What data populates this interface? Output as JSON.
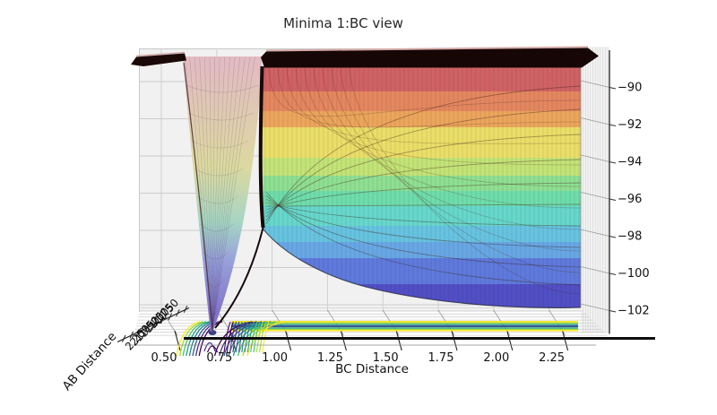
{
  "figure": {
    "title": "Minima 1:BC view",
    "background": "#ffffff"
  },
  "axes": {
    "x": {
      "label": "BC Distance",
      "ticks": [
        0.5,
        0.75,
        1.0,
        1.25,
        1.5,
        1.75,
        2.0,
        2.25
      ]
    },
    "y": {
      "label": "AB Distance",
      "ticks": [
        0.5,
        0.75,
        1.0,
        1.25,
        1.5,
        1.75,
        2.0,
        2.25
      ]
    },
    "z": {
      "ticks": [
        -90,
        -92,
        -94,
        -96,
        -98,
        -100,
        -102
      ]
    }
  },
  "colors": {
    "surface_bands": [
      "#d06264",
      "#e4875f",
      "#eca55c",
      "#eade68",
      "#c3e377",
      "#8fdf92",
      "#6fdcab",
      "#67d7cb",
      "#67c3e0",
      "#68a7e4",
      "#5f7adc",
      "#524fc5"
    ],
    "well_gradient": [
      "#e2bcc1",
      "#dcd9a0",
      "#a6d5c3",
      "#97a0db",
      "#8273ca"
    ],
    "cap": "#160605",
    "cap_highlight": "#d4a9a6",
    "projection_contours": [
      "#fde725",
      "#a0da39",
      "#4ac16d",
      "#1fa187",
      "#277f8e",
      "#365c8d",
      "#46327e",
      "#440154"
    ],
    "pane": "#f1f1f1",
    "grid": "#cccccc",
    "axis_line": "#111111"
  },
  "chart_data": {
    "type": "3d-surface",
    "title": "Minima 1:BC view",
    "xlabel": "BC Distance",
    "ylabel": "AB Distance",
    "zlabel": "",
    "x_ticks": [
      0.5,
      0.75,
      1.0,
      1.25,
      1.5,
      1.75,
      2.0,
      2.25
    ],
    "y_ticks": [
      0.5,
      0.75,
      1.0,
      1.25,
      1.5,
      1.75,
      2.0,
      2.25
    ],
    "z_ticks": [
      -90,
      -92,
      -94,
      -96,
      -98,
      -100,
      -102
    ],
    "view": "edge-on along the AB axis (elevation ~0), so all AB tick labels overlap at lower left",
    "surface": "Potential energy V(AB,BC): deep narrow minimum (well) near BC~0.74 dropping below -102; barrier hump near BC~0.9 at about -97.5 on the near edge; surface flattens toward ~-102 at large BC; values above ~-89 are clipped and drawn as a flat dark plateau cap",
    "colormap": "rainbow (red = high energy, violet/indigo = low energy)",
    "projection": "viridis-colored contour map of the same surface projected on the bottom (floor) pane, seen nearly edge-on as a yellow/green/blue stripe with a flared contour fan around the minimum at BC~0.74",
    "grid": true,
    "legend": false
  }
}
